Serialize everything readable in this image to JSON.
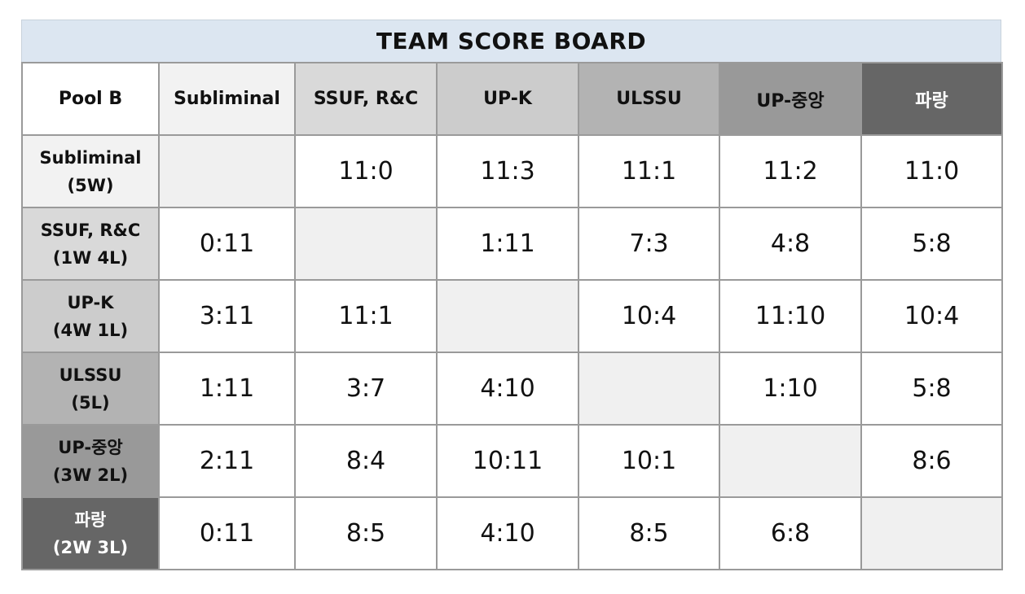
{
  "title": "TEAM SCORE BOARD",
  "corner_label": "Pool B",
  "columns": [
    {
      "label": "Subliminal",
      "bg": "#f2f2f2",
      "fg": "#111111"
    },
    {
      "label": "SSUF, R&C",
      "bg": "#d9d9d9",
      "fg": "#111111"
    },
    {
      "label": "UP-K",
      "bg": "#cccccc",
      "fg": "#111111"
    },
    {
      "label": "ULSSU",
      "bg": "#b3b3b3",
      "fg": "#111111"
    },
    {
      "label": "UP-중앙",
      "bg": "#999999",
      "fg": "#111111"
    },
    {
      "label": "파랑",
      "bg": "#666666",
      "fg": "#ffffff"
    }
  ],
  "rows": [
    {
      "name": "Subliminal",
      "record": "(5W)",
      "bg": "#f2f2f2",
      "fg": "#111111",
      "scores": [
        "",
        "11:0",
        "11:3",
        "11:1",
        "11:2",
        "11:0"
      ]
    },
    {
      "name": "SSUF, R&C",
      "record": "(1W 4L)",
      "bg": "#d9d9d9",
      "fg": "#111111",
      "scores": [
        "0:11",
        "",
        "1:11",
        "7:3",
        "4:8",
        "5:8"
      ]
    },
    {
      "name": "UP-K",
      "record": "(4W 1L)",
      "bg": "#cccccc",
      "fg": "#111111",
      "scores": [
        "3:11",
        "11:1",
        "",
        "10:4",
        "11:10",
        "10:4"
      ]
    },
    {
      "name": "ULSSU",
      "record": "(5L)",
      "bg": "#b3b3b3",
      "fg": "#111111",
      "scores": [
        "1:11",
        "3:7",
        "4:10",
        "",
        "1:10",
        "5:8"
      ]
    },
    {
      "name": "UP-중앙",
      "record": "(3W 2L)",
      "bg": "#999999",
      "fg": "#111111",
      "scores": [
        "2:11",
        "8:4",
        "10:11",
        "10:1",
        "",
        "8:6"
      ]
    },
    {
      "name": "파랑",
      "record": "(2W 3L)",
      "bg": "#666666",
      "fg": "#ffffff",
      "scores": [
        "0:11",
        "8:5",
        "4:10",
        "8:5",
        "6:8",
        ""
      ]
    }
  ]
}
